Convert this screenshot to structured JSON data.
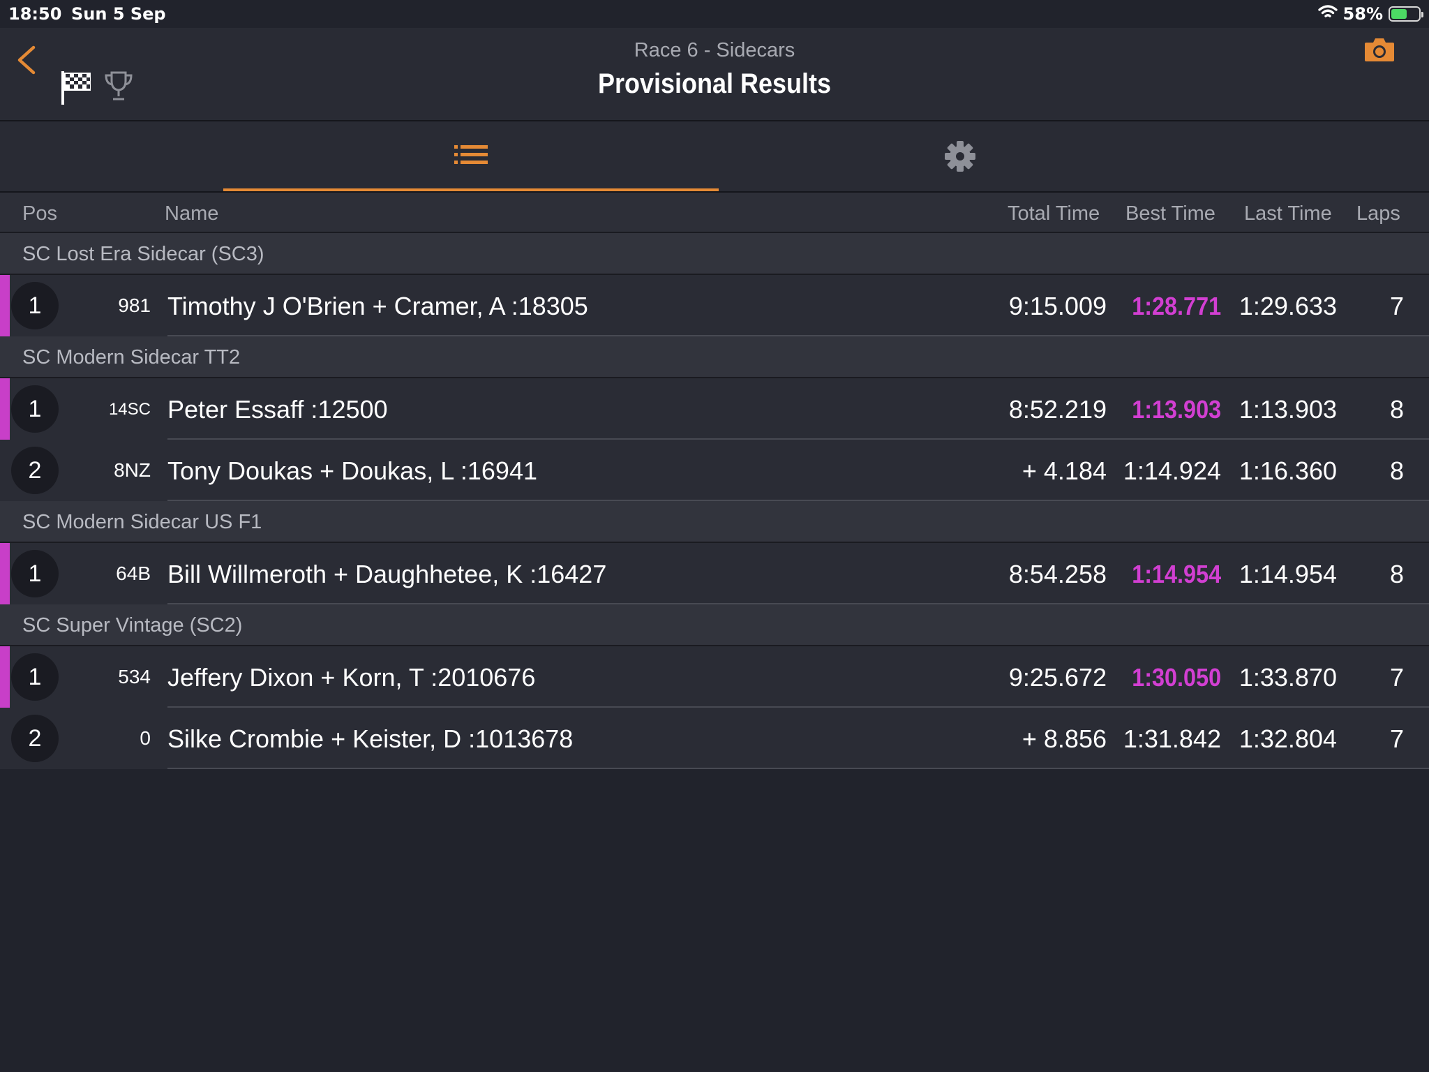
{
  "status": {
    "time": "18:50",
    "date": "Sun 5 Sep",
    "battery": "58%",
    "battery_level": 0.58
  },
  "nav": {
    "subtitle": "Race 6 - Sidecars",
    "title": "Provisional Results",
    "accent_color": "#e58a35",
    "icons": [
      "back-chevron-icon",
      "checkered-flag-icon",
      "trophy-icon",
      "camera-icon"
    ]
  },
  "tabs": [
    {
      "icon": "list-icon",
      "selected": true
    },
    {
      "icon": "gear-icon",
      "selected": false
    }
  ],
  "columns": {
    "pos": "Pos",
    "name": "Name",
    "total": "Total Time",
    "best": "Best Time",
    "last": "Last Time",
    "laps": "Laps"
  },
  "groups": [
    {
      "name": "SC Lost Era Sidecar (SC3)",
      "rows": [
        {
          "pos": "1",
          "number": "981",
          "name": "Timothy J O'Brien + Cramer, A :18305",
          "total": "9:15.009",
          "best": "1:28.771",
          "last": "1:29.633",
          "laps": "7",
          "leader": true
        }
      ]
    },
    {
      "name": "SC Modern Sidecar TT2",
      "rows": [
        {
          "pos": "1",
          "number": "14SC",
          "name": "Peter Essaff :12500",
          "total": "8:52.219",
          "best": "1:13.903",
          "last": "1:13.903",
          "laps": "8",
          "leader": true
        },
        {
          "pos": "2",
          "number": "8NZ",
          "name": "Tony Doukas + Doukas, L :16941",
          "total": "+ 4.184",
          "best": "1:14.924",
          "last": "1:16.360",
          "laps": "8",
          "leader": false
        }
      ]
    },
    {
      "name": "SC Modern Sidecar US F1",
      "rows": [
        {
          "pos": "1",
          "number": "64B",
          "name": "Bill Willmeroth + Daughhetee, K :16427",
          "total": "8:54.258",
          "best": "1:14.954",
          "last": "1:14.954",
          "laps": "8",
          "leader": true
        }
      ]
    },
    {
      "name": "SC Super Vintage (SC2)",
      "rows": [
        {
          "pos": "1",
          "number": "534",
          "name": "Jeffery Dixon + Korn, T :2010676",
          "total": "9:25.672",
          "best": "1:30.050",
          "last": "1:33.870",
          "laps": "7",
          "leader": true
        },
        {
          "pos": "2",
          "number": "0",
          "name": "Silke Crombie + Keister, D :1013678",
          "total": "+ 8.856",
          "best": "1:31.842",
          "last": "1:32.804",
          "laps": "7",
          "leader": false
        }
      ]
    }
  ]
}
